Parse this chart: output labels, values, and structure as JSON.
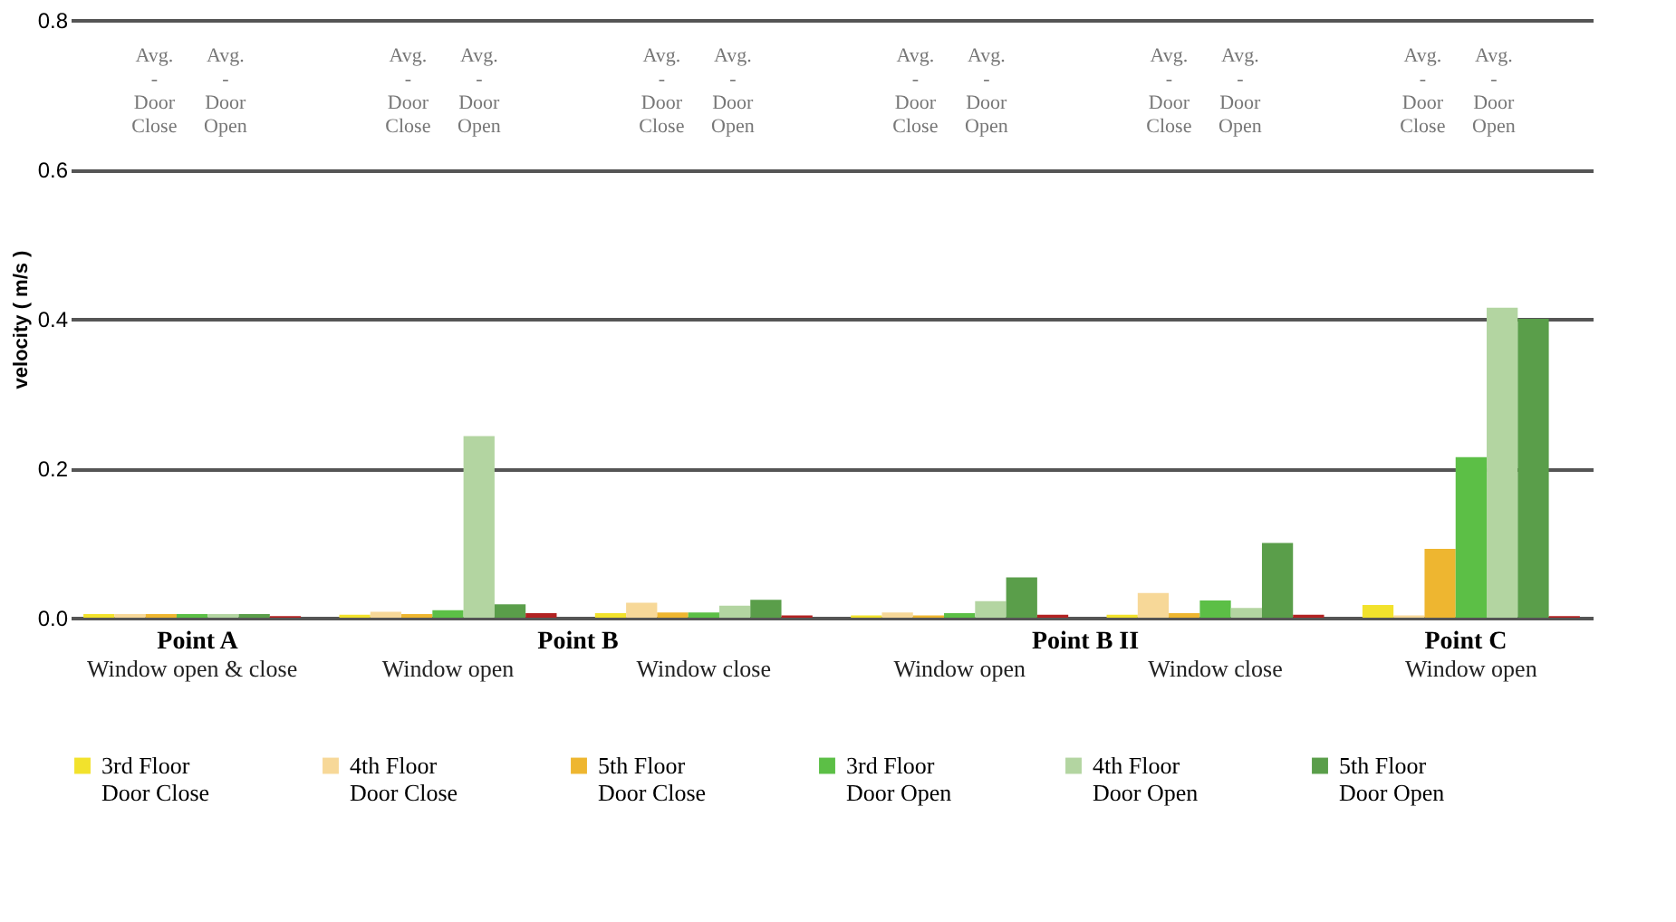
{
  "chart_data": {
    "type": "bar",
    "ylabel": "velocity ( m/s )",
    "categories": [
      "Window open & close",
      "Window open",
      "Window  close",
      "Window open",
      "Window  close",
      "Window open"
    ],
    "series": [
      {
        "name": "3rd Floor\nDoor Close",
        "color": "#f2e22c",
        "values": [
          0.005,
          0.004,
          0.006,
          0.003,
          0.004,
          0.017
        ]
      },
      {
        "name": "4th Floor\nDoor Close",
        "color": "#f7d898",
        "values": [
          0.005,
          0.008,
          0.02,
          0.007,
          0.033,
          0.003
        ]
      },
      {
        "name": "5th Floor\nDoor Close",
        "color": "#eeb630",
        "values": [
          0.005,
          0.005,
          0.007,
          0.003,
          0.006,
          0.092
        ]
      },
      {
        "name": "3rd Floor\nDoor Open",
        "color": "#5cbf46",
        "values": [
          0.005,
          0.01,
          0.007,
          0.006,
          0.023,
          0.215
        ]
      },
      {
        "name": "4th Floor\nDoor Open",
        "color": "#b3d5a1",
        "values": [
          0.005,
          0.243,
          0.016,
          0.022,
          0.013,
          0.415
        ]
      },
      {
        "name": "5th Floor\nDoor Open",
        "color": "#5a9e4a",
        "values": [
          0.005,
          0.018,
          0.024,
          0.054,
          0.1,
          0.4
        ]
      },
      {
        "color": "#b22222",
        "values": [
          0.002,
          0.006,
          0.003,
          0.004,
          0.004,
          0.002
        ]
      }
    ],
    "ylim": [
      0,
      0.8
    ],
    "yticks": [
      {
        "value": 0,
        "label": "0.0"
      },
      {
        "value": 0.2,
        "label": "0.2"
      },
      {
        "value": 0.4,
        "label": "0.4"
      },
      {
        "value": 0.6,
        "label": "0.6"
      },
      {
        "value": 0.8,
        "label": "0.8"
      }
    ],
    "grid": "y",
    "legend": "bottom",
    "annotations": [
      "Point A",
      "Point B",
      "Point B II",
      "Point C",
      "Avg.\n-\nDoor\nClose",
      "Avg.\n-\nDoor\nOpen",
      "Avg.\n-\nDoor\nClose",
      "Avg.\n-\nDoor\nOpen",
      "Avg.\n-\nDoor\nClose",
      "Avg.\n-\nDoor\nOpen",
      "Avg.\n-\nDoor\nClose",
      "Avg.\n-\nDoor\nOpen",
      "Avg.\n-\nDoor\nClose",
      "Avg.\n-\nDoor\nOpen",
      "Avg.\n-\nDoor\nClose",
      "Avg.\n-\nDoor\nOpen"
    ]
  }
}
